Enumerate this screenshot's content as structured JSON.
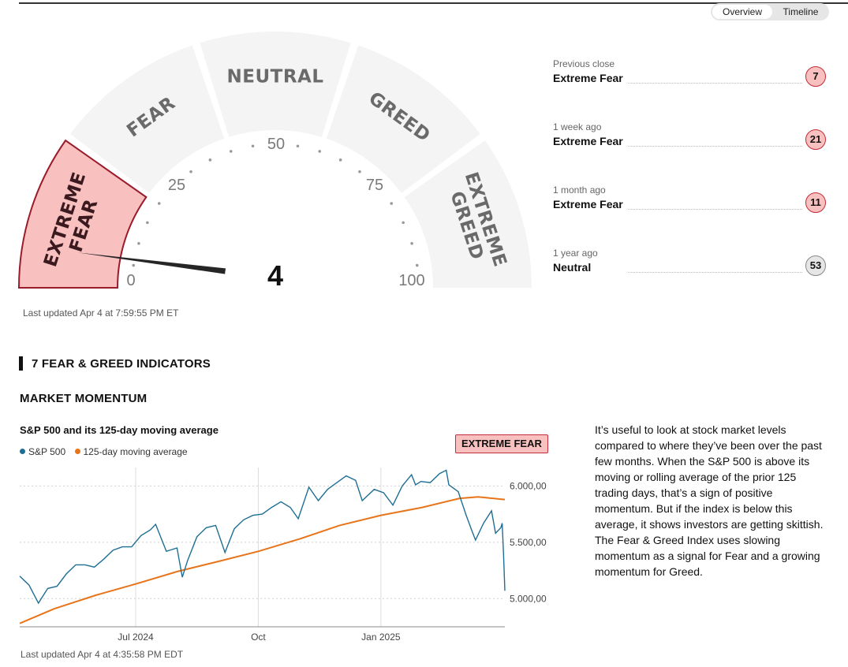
{
  "view_toggle": {
    "options": [
      "Overview",
      "Timeline"
    ],
    "selected": "Overview"
  },
  "gauge": {
    "score": "4",
    "segment_labels": [
      "EXTREME FEAR",
      "FEAR",
      "NEUTRAL",
      "GREED",
      "EXTREME GREED"
    ],
    "active_segment": "EXTREME FEAR",
    "tick_labels": [
      "0",
      "25",
      "50",
      "75",
      "100"
    ],
    "active_color": "#f9c0c0",
    "active_border": "#9a1b2a",
    "inactive_color": "#f4f4f4",
    "last_updated": "Last updated Apr 4 at 7:59:55 PM ET"
  },
  "history": [
    {
      "when": "Previous close",
      "rating": "Extreme Fear",
      "value": "7",
      "class": "fear"
    },
    {
      "when": "1 week ago",
      "rating": "Extreme Fear",
      "value": "21",
      "class": "fear"
    },
    {
      "when": "1 month ago",
      "rating": "Extreme Fear",
      "value": "11",
      "class": "fear"
    },
    {
      "when": "1 year ago",
      "rating": "Neutral",
      "value": "53",
      "class": "neutral"
    }
  ],
  "indicators_heading": "7 FEAR & GREED INDICATORS",
  "indicator": {
    "title": "MARKET MOMENTUM",
    "chart_title": "S&P 500 and its 125-day moving average",
    "badge": "EXTREME FEAR",
    "description": "It’s useful to look at stock market levels compared to where they’ve been over the past few months. When the S&P 500 is above its moving or rolling average of the prior 125 trading days, that’s a sign of positive momentum. But if the index is below this average, it shows investors are getting skittish. The Fear & Greed Index uses slowing momentum as a signal for Fear and a growing momentum for Greed.",
    "last_updated": "Last updated Apr 4 at 4:35:58 PM EDT"
  },
  "chart_data": {
    "type": "line",
    "title": "S&P 500 and its 125-day moving average",
    "x_tick_labels": [
      "Jul 2024",
      "Oct",
      "Jan 2025"
    ],
    "y_tick_labels": [
      "5.000,00",
      "5.500,00",
      "6.000,00"
    ],
    "y_ticks": [
      5000,
      5500,
      6000
    ],
    "ylim": [
      4750,
      6150
    ],
    "x_range": [
      "2024-04-05",
      "2025-04-04"
    ],
    "x_ticks": [
      "2024-07-01",
      "2024-10-01",
      "2025-01-01"
    ],
    "legend_position": "top-left",
    "grid": "dotted horizontal, solid vertical at month ticks",
    "series": [
      {
        "name": "S&P 500",
        "color": "#1f6e94",
        "points": [
          [
            "2024-04-05",
            5200
          ],
          [
            "2024-04-12",
            5120
          ],
          [
            "2024-04-19",
            4960
          ],
          [
            "2024-04-26",
            5090
          ],
          [
            "2024-05-03",
            5110
          ],
          [
            "2024-05-10",
            5220
          ],
          [
            "2024-05-17",
            5300
          ],
          [
            "2024-05-24",
            5300
          ],
          [
            "2024-05-31",
            5280
          ],
          [
            "2024-06-07",
            5350
          ],
          [
            "2024-06-14",
            5430
          ],
          [
            "2024-06-21",
            5460
          ],
          [
            "2024-06-28",
            5460
          ],
          [
            "2024-07-05",
            5560
          ],
          [
            "2024-07-12",
            5610
          ],
          [
            "2024-07-16",
            5660
          ],
          [
            "2024-07-24",
            5420
          ],
          [
            "2024-08-01",
            5450
          ],
          [
            "2024-08-05",
            5190
          ],
          [
            "2024-08-09",
            5340
          ],
          [
            "2024-08-16",
            5550
          ],
          [
            "2024-08-23",
            5630
          ],
          [
            "2024-08-30",
            5650
          ],
          [
            "2024-09-06",
            5410
          ],
          [
            "2024-09-13",
            5620
          ],
          [
            "2024-09-20",
            5700
          ],
          [
            "2024-09-27",
            5740
          ],
          [
            "2024-10-04",
            5750
          ],
          [
            "2024-10-11",
            5810
          ],
          [
            "2024-10-18",
            5860
          ],
          [
            "2024-10-25",
            5810
          ],
          [
            "2024-10-31",
            5710
          ],
          [
            "2024-11-08",
            5990
          ],
          [
            "2024-11-15",
            5870
          ],
          [
            "2024-11-22",
            5970
          ],
          [
            "2024-11-29",
            6030
          ],
          [
            "2024-12-06",
            6090
          ],
          [
            "2024-12-13",
            6050
          ],
          [
            "2024-12-18",
            5870
          ],
          [
            "2024-12-27",
            5970
          ],
          [
            "2025-01-03",
            5940
          ],
          [
            "2025-01-10",
            5830
          ],
          [
            "2025-01-17",
            6000
          ],
          [
            "2025-01-24",
            6100
          ],
          [
            "2025-01-27",
            6010
          ],
          [
            "2025-01-31",
            6040
          ],
          [
            "2025-02-07",
            6030
          ],
          [
            "2025-02-14",
            6110
          ],
          [
            "2025-02-19",
            6140
          ],
          [
            "2025-02-21",
            6010
          ],
          [
            "2025-02-28",
            5950
          ],
          [
            "2025-03-06",
            5740
          ],
          [
            "2025-03-10",
            5610
          ],
          [
            "2025-03-13",
            5520
          ],
          [
            "2025-03-19",
            5670
          ],
          [
            "2025-03-25",
            5780
          ],
          [
            "2025-03-28",
            5580
          ],
          [
            "2025-04-01",
            5630
          ],
          [
            "2025-04-02",
            5670
          ],
          [
            "2025-04-03",
            5400
          ],
          [
            "2025-04-04",
            5070
          ]
        ]
      },
      {
        "name": "125-day moving average",
        "color": "#e8741a",
        "points": [
          [
            "2024-04-05",
            4780
          ],
          [
            "2024-05-01",
            4910
          ],
          [
            "2024-06-01",
            5030
          ],
          [
            "2024-07-01",
            5130
          ],
          [
            "2024-08-01",
            5240
          ],
          [
            "2024-09-01",
            5330
          ],
          [
            "2024-10-01",
            5420
          ],
          [
            "2024-11-01",
            5530
          ],
          [
            "2024-12-01",
            5650
          ],
          [
            "2025-01-01",
            5740
          ],
          [
            "2025-02-01",
            5810
          ],
          [
            "2025-03-01",
            5890
          ],
          [
            "2025-03-15",
            5903
          ],
          [
            "2025-04-04",
            5880
          ]
        ]
      }
    ]
  }
}
